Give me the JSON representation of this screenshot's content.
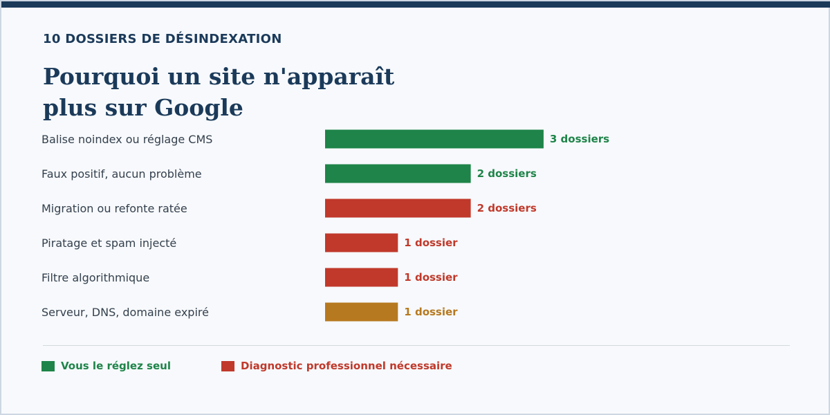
{
  "header": {
    "eyebrow": "10 DOSSIERS DE DÉSINDEXATION",
    "title_line1": "Pourquoi un site n'apparaît",
    "title_line2": "plus sur Google"
  },
  "colors": {
    "diy": "#1e8449",
    "pro": "#c0392b",
    "infra": "#b7791f",
    "category_text": "#34404d",
    "heading": "#1b3a5a"
  },
  "legend": [
    {
      "label": "Vous le réglez seul",
      "color": "#1e8449"
    },
    {
      "label": "Diagnostic professionnel nécessaire",
      "color": "#c0392b"
    }
  ],
  "chart_data": {
    "type": "bar",
    "orientation": "horizontal",
    "title": "Pourquoi un site n'apparaît plus sur Google",
    "subtitle": "10 DOSSIERS DE DÉSINDEXATION",
    "xlim": [
      0,
      3
    ],
    "grid": false,
    "legend_position": "bottom-left",
    "categories": [
      "Balise noindex ou réglage CMS",
      "Faux positif, aucun problème",
      "Migration ou refonte ratée",
      "Piratage et spam injecté",
      "Filtre algorithmique",
      "Serveur, DNS, domaine expiré"
    ],
    "values": [
      3,
      2,
      2,
      1,
      1,
      1
    ],
    "value_labels": [
      "3 dossiers",
      "2 dossiers",
      "2 dossiers",
      "1 dossier",
      "1 dossier",
      "1 dossier"
    ],
    "bar_colors": [
      "#1e8449",
      "#1e8449",
      "#c0392b",
      "#c0392b",
      "#c0392b",
      "#b7791f"
    ]
  }
}
